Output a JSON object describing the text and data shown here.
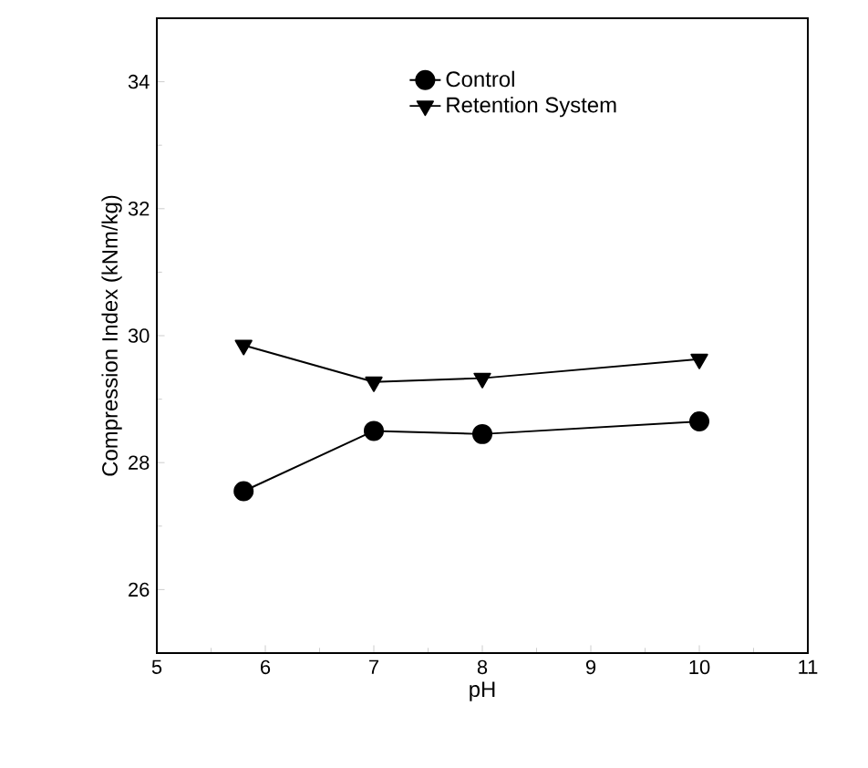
{
  "chart_data": {
    "type": "line",
    "xlabel": "pH",
    "ylabel": "Compression Index (kNm/kg)",
    "xlim": [
      5,
      11
    ],
    "xticks": [
      5,
      6,
      7,
      8,
      9,
      10,
      11
    ],
    "ylim": [
      25,
      35
    ],
    "yticks": [
      26,
      28,
      30,
      32,
      34
    ],
    "legend": "top",
    "line_style": "solid",
    "series": [
      {
        "name": "Control",
        "color": "#000000",
        "marker": "circle",
        "x": [
          5.8,
          7,
          8,
          10
        ],
        "values": [
          27.55,
          28.5,
          28.45,
          28.65
        ]
      },
      {
        "name": "Retention System",
        "color": "#000000",
        "marker": "triangle",
        "x": [
          5.8,
          7,
          8,
          10
        ],
        "values": [
          29.85,
          29.27,
          29.33,
          29.63
        ]
      }
    ]
  }
}
